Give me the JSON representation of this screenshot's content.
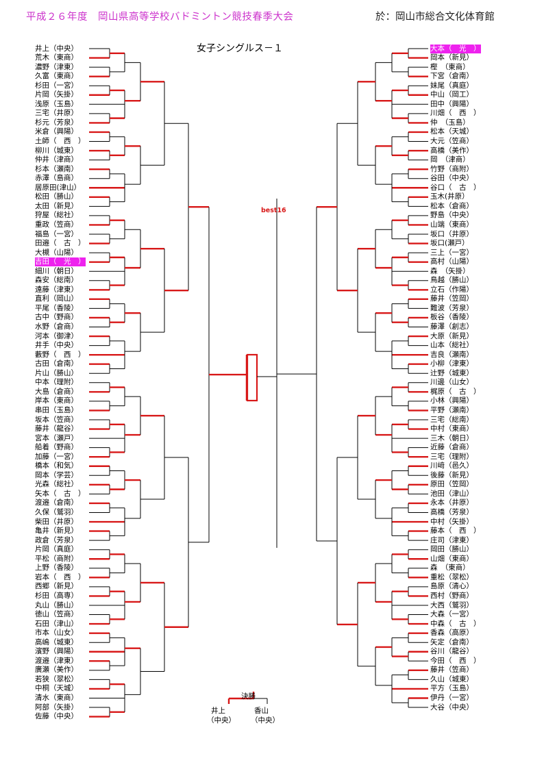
{
  "header": {
    "title": "平成２６年度　岡山県高等学校バドミントン競技春季大会",
    "venue": "於：岡山市総合文化体育館"
  },
  "event_title": "女子シングルス－１",
  "best16_label": "best16",
  "final": {
    "label": "決勝",
    "left_name": "井上",
    "left_school": "（中央）",
    "right_name": "香山",
    "right_school": "（中央）"
  },
  "left_players": [
    "井上（中央）",
    "荒木（東商）",
    "濃野（津東）",
    "久富（東商）",
    "杉田（一宮）",
    "片岡（矢掛）",
    "浅原（玉島）",
    "三宅（井原）",
    "杉元（芳泉）",
    "米倉（興陽）",
    "土師（　西　）",
    "柳川（城東）",
    "仲井（津商）",
    "杉本（瀬南）",
    "赤澤（島商）",
    "居原田(津山）",
    "松田（勝山）",
    "太田（新見）",
    "狩屋（総社）",
    "重政（笠商）",
    "福島（一宮）",
    "田邉（　古　）",
    "大槻（山陽）",
    "吉田（　光　）",
    "細川（朝日）",
    "森安（総南）",
    "遠藤（津東）",
    "直利（岡山）",
    "平尾（香陵）",
    "古中（野商）",
    "水野（倉商）",
    "河本（御津）",
    "井手（中央）",
    "藪野（　西　）",
    "古田（倉南）",
    "片山（勝山）",
    "中本（理附）",
    "大島（倉商）",
    "岸本（東商）",
    "串田（玉島）",
    "坂本（笠商）",
    "藤井（龍谷）",
    "宮本（瀬戸）",
    "船着（野商）",
    "加藤（一宮）",
    "橋本（和気）",
    "岡本（学芸）",
    "光森（総社）",
    "矢本（　古　）",
    "渡邉（倉南）",
    "久保（鷲羽）",
    "柴田（井原）",
    "亀井（新見）",
    "政倉（芳泉）",
    "片岡（真庭）",
    "平松（商附）",
    "上野（香陵）",
    "岩本（　西　）",
    "西郷（新見）",
    "杉田（高専）",
    "丸山（勝山）",
    "徳山（笠商）",
    "石田（津山）",
    "市本（山女）",
    "高嶋（城東）",
    "濱野（興陽）",
    "渡邉（津東）",
    "廣瀬（美作）",
    "若狭（翠松）",
    "中桐（天城）",
    "清水（東商）",
    "阿部（矢掛）",
    "佐藤（中央）"
  ],
  "right_players": [
    "大本（　光　）",
    "岡本（新見）",
    "樫　（東商）",
    "下宮（倉南）",
    "妹尾（真庭）",
    "中山（岡工）",
    "田中（興陽）",
    "川畑（　西　）",
    "仲　（玉島）",
    "松本（天城）",
    "大元（笠商）",
    "高橋（美作）",
    "岡　（津商）",
    "竹野（商附）",
    "谷田（中央）",
    "谷口（　古　）",
    "玉木(井原）",
    "松本（倉商）",
    "野島（中央）",
    "山端（東商）",
    "坂口（井原）",
    "坂口(瀬戸）",
    "三上（一宮）",
    "高村（山陽）",
    "森　（矢掛）",
    "鳥越（勝山）",
    "立石（作陽）",
    "藤井（笠岡）",
    "難波（芳泉）",
    "板谷（香陵）",
    "藤澤（創志）",
    "大原（新見）",
    "山本（総社）",
    "吉良（瀬南）",
    "小柳（津東）",
    "辻野（城東）",
    "川邊（山女）",
    "梶原（　古　）",
    "小林（興陽）",
    "平野（瀬南）",
    "三宅（総南）",
    "中村（東商）",
    "三木（朝日）",
    "近藤（倉商）",
    "三宅（理附）",
    "川﨑（邑久）",
    "後藤（新見）",
    "原田（笠岡）",
    "池田（津山）",
    "永本（井原）",
    "高橋（芳泉）",
    "中村（矢掛）",
    "藤本（　西　）",
    "庄司（津東）",
    "岡田（勝山）",
    "山畑（東商）",
    "森　（東商）",
    "重松（翠松）",
    "島原（清心）",
    "西村（野商）",
    "大西（鷲羽）",
    "大森（一宮）",
    "中森（　古　）",
    "香森（高原）",
    "矢定（倉南）",
    "谷川（龍谷）",
    "今田（　西　）",
    "藤井（笠商）",
    "久山（城東）",
    "平方（玉島）",
    "伊丹（一宮）",
    "大谷（中央）"
  ],
  "highlighted": {
    "left": [
      23
    ],
    "right": [
      0
    ]
  },
  "colors": {
    "title": "#cc33cc",
    "highlight": "#ee22ee",
    "winner_line": "#d81818",
    "line": "#000000"
  }
}
